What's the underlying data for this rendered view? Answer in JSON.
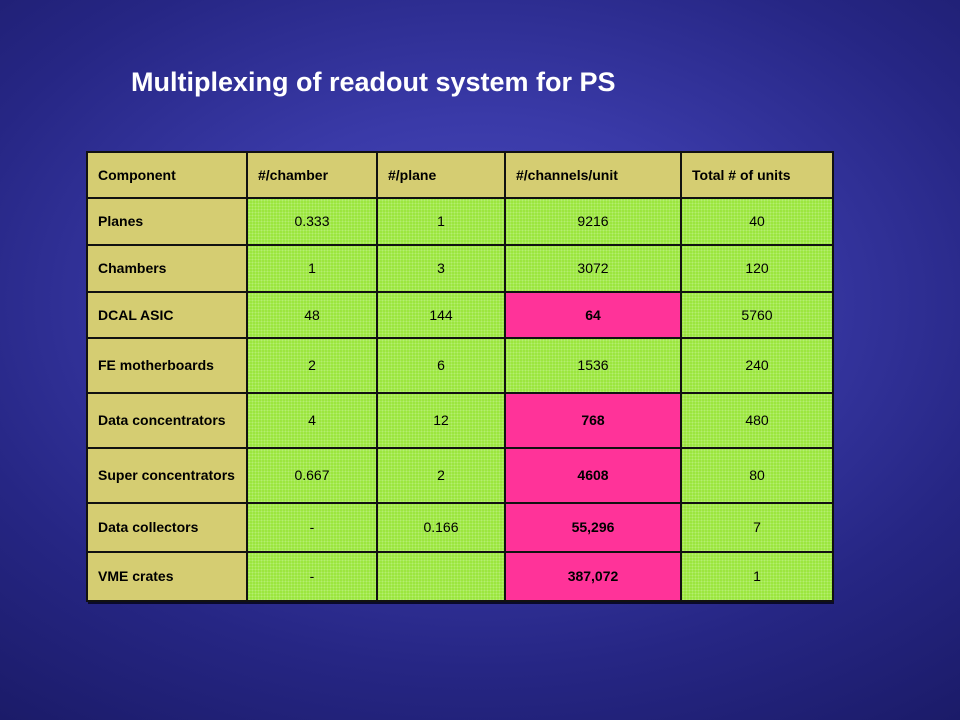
{
  "title": "Multiplexing of readout system for PS",
  "table": {
    "headers": [
      "Component",
      "#/chamber",
      "#/plane",
      "#/channels/unit",
      "Total # of units"
    ],
    "rows": [
      {
        "component": "Planes",
        "per_chamber": "0.333",
        "per_plane": "1",
        "channels_per_unit": "9216",
        "total_units": "40",
        "channels_highlighted": false
      },
      {
        "component": "Chambers",
        "per_chamber": "1",
        "per_plane": "3",
        "channels_per_unit": "3072",
        "total_units": "120",
        "channels_highlighted": false
      },
      {
        "component": "DCAL ASIC",
        "per_chamber": "48",
        "per_plane": "144",
        "channels_per_unit": "64",
        "total_units": "5760",
        "channels_highlighted": true
      },
      {
        "component": "FE motherboards",
        "per_chamber": "2",
        "per_plane": "6",
        "channels_per_unit": "1536",
        "total_units": "240",
        "channels_highlighted": false
      },
      {
        "component": "Data concentrators",
        "per_chamber": "4",
        "per_plane": "12",
        "channels_per_unit": "768",
        "total_units": "480",
        "channels_highlighted": true
      },
      {
        "component": "Super concentrators",
        "per_chamber": "0.667",
        "per_plane": "2",
        "channels_per_unit": "4608",
        "total_units": "80",
        "channels_highlighted": true
      },
      {
        "component": "Data collectors",
        "per_chamber": "-",
        "per_plane": "0.166",
        "channels_per_unit": "55,296",
        "total_units": "7",
        "channels_highlighted": true
      },
      {
        "component": "VME crates",
        "per_chamber": "-",
        "per_plane": "",
        "channels_per_unit": "387,072",
        "total_units": "1",
        "channels_highlighted": true
      }
    ]
  },
  "colors": {
    "header_bg": "#d5cd72",
    "value_bg": "#99e63a",
    "highlight_bg": "#ff3399",
    "slide_bg": "#2e2e96",
    "title_color": "#ffffff"
  }
}
